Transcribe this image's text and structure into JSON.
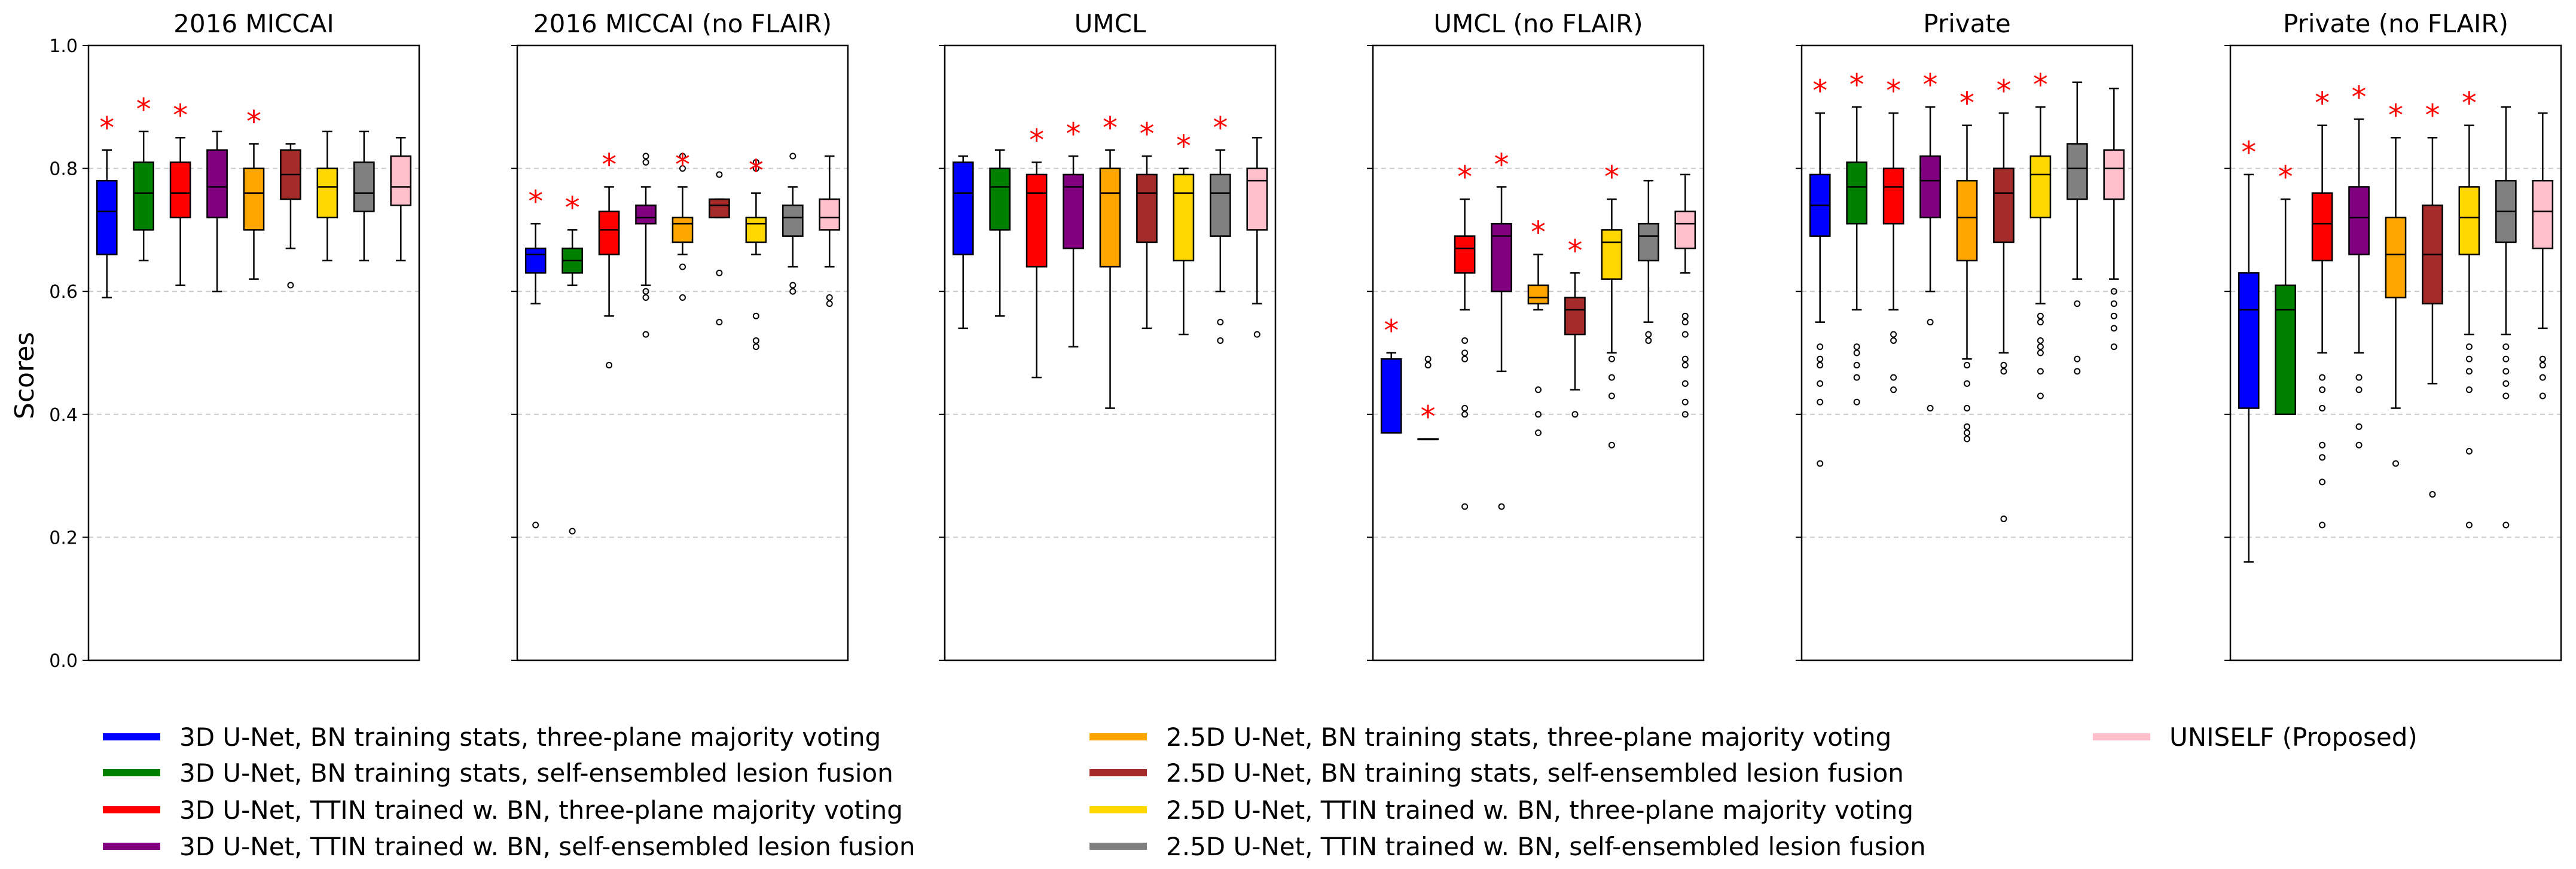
{
  "chart_data": {
    "type": "box",
    "ylabel": "Scores",
    "ylim": [
      0.0,
      1.0
    ],
    "yticks": [
      "0.0",
      "0.2",
      "0.4",
      "0.6",
      "0.8",
      "1.0"
    ],
    "gridlines": [
      0.2,
      0.4,
      0.6,
      0.8
    ],
    "legend": [
      {
        "label": "3D U-Net, BN training stats, three-plane majority voting",
        "color": "#0000ff"
      },
      {
        "label": "3D U-Net, BN training stats, self-ensembled lesion fusion",
        "color": "#008000"
      },
      {
        "label": "3D U-Net, TTIN trained w. BN, three-plane majority voting",
        "color": "#ff0000"
      },
      {
        "label": "3D U-Net, TTIN trained w. BN, self-ensembled lesion fusion",
        "color": "#800080"
      },
      {
        "label": "2.5D U-Net, BN training stats, three-plane majority voting",
        "color": "#ffa500"
      },
      {
        "label": "2.5D U-Net, BN training stats, self-ensembled lesion fusion",
        "color": "#a52a2a"
      },
      {
        "label": "2.5D U-Net, TTIN trained w. BN, three-plane majority voting",
        "color": "#ffd700"
      },
      {
        "label": "2.5D U-Net, TTIN trained w. BN, self-ensembled lesion fusion",
        "color": "#808080"
      },
      {
        "label": "UNISELF (Proposed)",
        "color": "#ffc0cb"
      }
    ],
    "significance_marker": "*",
    "panels": [
      {
        "title": "2016 MICCAI",
        "boxes": [
          {
            "wl": 0.59,
            "q1": 0.66,
            "med": 0.73,
            "q3": 0.78,
            "wh": 0.83,
            "fl": [],
            "sig": true
          },
          {
            "wl": 0.65,
            "q1": 0.7,
            "med": 0.76,
            "q3": 0.81,
            "wh": 0.86,
            "fl": [],
            "sig": true
          },
          {
            "wl": 0.61,
            "q1": 0.72,
            "med": 0.76,
            "q3": 0.81,
            "wh": 0.85,
            "fl": [],
            "sig": true
          },
          {
            "wl": 0.6,
            "q1": 0.72,
            "med": 0.77,
            "q3": 0.83,
            "wh": 0.86,
            "fl": [],
            "sig": false
          },
          {
            "wl": 0.62,
            "q1": 0.7,
            "med": 0.76,
            "q3": 0.8,
            "wh": 0.84,
            "fl": [],
            "sig": true
          },
          {
            "wl": 0.67,
            "q1": 0.75,
            "med": 0.79,
            "q3": 0.83,
            "wh": 0.84,
            "fl": [
              0.61
            ],
            "sig": false
          },
          {
            "wl": 0.65,
            "q1": 0.72,
            "med": 0.77,
            "q3": 0.8,
            "wh": 0.86,
            "fl": [],
            "sig": false
          },
          {
            "wl": 0.65,
            "q1": 0.73,
            "med": 0.76,
            "q3": 0.81,
            "wh": 0.86,
            "fl": [],
            "sig": false
          },
          {
            "wl": 0.65,
            "q1": 0.74,
            "med": 0.77,
            "q3": 0.82,
            "wh": 0.85,
            "fl": [],
            "sig": false
          }
        ]
      },
      {
        "title": "2016 MICCAI (no FLAIR)",
        "boxes": [
          {
            "wl": 0.58,
            "q1": 0.63,
            "med": 0.66,
            "q3": 0.67,
            "wh": 0.71,
            "fl": [
              0.22
            ],
            "sig": true
          },
          {
            "wl": 0.61,
            "q1": 0.63,
            "med": 0.65,
            "q3": 0.67,
            "wh": 0.7,
            "fl": [
              0.21
            ],
            "sig": true
          },
          {
            "wl": 0.56,
            "q1": 0.66,
            "med": 0.7,
            "q3": 0.73,
            "wh": 0.77,
            "fl": [
              0.48
            ],
            "sig": true
          },
          {
            "wl": 0.61,
            "q1": 0.71,
            "med": 0.72,
            "q3": 0.74,
            "wh": 0.77,
            "fl": [
              0.82,
              0.81,
              0.6,
              0.59,
              0.53
            ],
            "sig": false
          },
          {
            "wl": 0.66,
            "q1": 0.68,
            "med": 0.71,
            "q3": 0.72,
            "wh": 0.77,
            "fl": [
              0.82,
              0.8,
              0.64,
              0.59
            ],
            "sig": true
          },
          {
            "wl": 0.72,
            "q1": 0.72,
            "med": 0.74,
            "q3": 0.75,
            "wh": 0.75,
            "fl": [
              0.79,
              0.63,
              0.55
            ],
            "sig": false
          },
          {
            "wl": 0.66,
            "q1": 0.68,
            "med": 0.71,
            "q3": 0.72,
            "wh": 0.76,
            "fl": [
              0.81,
              0.8,
              0.56,
              0.52,
              0.51
            ],
            "sig": true
          },
          {
            "wl": 0.64,
            "q1": 0.69,
            "med": 0.72,
            "q3": 0.74,
            "wh": 0.77,
            "fl": [
              0.82,
              0.61,
              0.6
            ],
            "sig": false
          },
          {
            "wl": 0.64,
            "q1": 0.7,
            "med": 0.72,
            "q3": 0.75,
            "wh": 0.82,
            "fl": [
              0.59,
              0.58
            ],
            "sig": false
          }
        ]
      },
      {
        "title": "UMCL",
        "boxes": [
          {
            "wl": 0.54,
            "q1": 0.66,
            "med": 0.76,
            "q3": 0.81,
            "wh": 0.82,
            "fl": [],
            "sig": false
          },
          {
            "wl": 0.56,
            "q1": 0.7,
            "med": 0.77,
            "q3": 0.8,
            "wh": 0.83,
            "fl": [],
            "sig": false
          },
          {
            "wl": 0.46,
            "q1": 0.64,
            "med": 0.76,
            "q3": 0.79,
            "wh": 0.81,
            "fl": [],
            "sig": true
          },
          {
            "wl": 0.51,
            "q1": 0.67,
            "med": 0.77,
            "q3": 0.79,
            "wh": 0.82,
            "fl": [],
            "sig": true
          },
          {
            "wl": 0.41,
            "q1": 0.64,
            "med": 0.76,
            "q3": 0.8,
            "wh": 0.83,
            "fl": [],
            "sig": true
          },
          {
            "wl": 0.54,
            "q1": 0.68,
            "med": 0.76,
            "q3": 0.79,
            "wh": 0.82,
            "fl": [],
            "sig": true
          },
          {
            "wl": 0.53,
            "q1": 0.65,
            "med": 0.76,
            "q3": 0.79,
            "wh": 0.8,
            "fl": [],
            "sig": true
          },
          {
            "wl": 0.6,
            "q1": 0.69,
            "med": 0.76,
            "q3": 0.79,
            "wh": 0.83,
            "fl": [
              0.55,
              0.52
            ],
            "sig": true
          },
          {
            "wl": 0.58,
            "q1": 0.7,
            "med": 0.78,
            "q3": 0.8,
            "wh": 0.85,
            "fl": [
              0.53
            ],
            "sig": false
          }
        ]
      },
      {
        "title": "UMCL (no FLAIR)",
        "boxes": [
          {
            "wl": 0.37,
            "q1": 0.37,
            "med": 0.37,
            "q3": 0.49,
            "wh": 0.5,
            "fl": [],
            "sig": true
          },
          {
            "wl": 0.36,
            "q1": 0.36,
            "med": 0.36,
            "q3": 0.36,
            "wh": 0.36,
            "fl": [
              0.49,
              0.48
            ],
            "sig": true
          },
          {
            "wl": 0.57,
            "q1": 0.63,
            "med": 0.67,
            "q3": 0.69,
            "wh": 0.75,
            "fl": [
              0.52,
              0.5,
              0.49,
              0.41,
              0.4,
              0.25
            ],
            "sig": true
          },
          {
            "wl": 0.47,
            "q1": 0.6,
            "med": 0.69,
            "q3": 0.71,
            "wh": 0.77,
            "fl": [
              0.25
            ],
            "sig": true
          },
          {
            "wl": 0.57,
            "q1": 0.58,
            "med": 0.59,
            "q3": 0.61,
            "wh": 0.66,
            "fl": [
              0.44,
              0.4,
              0.37
            ],
            "sig": true
          },
          {
            "wl": 0.44,
            "q1": 0.53,
            "med": 0.57,
            "q3": 0.59,
            "wh": 0.63,
            "fl": [
              0.4
            ],
            "sig": true
          },
          {
            "wl": 0.5,
            "q1": 0.62,
            "med": 0.68,
            "q3": 0.7,
            "wh": 0.75,
            "fl": [
              0.49,
              0.46,
              0.43,
              0.35
            ],
            "sig": true
          },
          {
            "wl": 0.55,
            "q1": 0.65,
            "med": 0.69,
            "q3": 0.71,
            "wh": 0.78,
            "fl": [
              0.53,
              0.52
            ],
            "sig": false
          },
          {
            "wl": 0.63,
            "q1": 0.67,
            "med": 0.71,
            "q3": 0.73,
            "wh": 0.79,
            "fl": [
              0.56,
              0.55,
              0.53,
              0.49,
              0.48,
              0.45,
              0.42,
              0.4
            ],
            "sig": false
          }
        ]
      },
      {
        "title": "Private",
        "boxes": [
          {
            "wl": 0.55,
            "q1": 0.69,
            "med": 0.74,
            "q3": 0.79,
            "wh": 0.89,
            "fl": [
              0.51,
              0.49,
              0.48,
              0.45,
              0.42,
              0.32
            ],
            "sig": true
          },
          {
            "wl": 0.57,
            "q1": 0.71,
            "med": 0.77,
            "q3": 0.81,
            "wh": 0.9,
            "fl": [
              0.51,
              0.5,
              0.48,
              0.46,
              0.42
            ],
            "sig": true
          },
          {
            "wl": 0.57,
            "q1": 0.71,
            "med": 0.77,
            "q3": 0.8,
            "wh": 0.89,
            "fl": [
              0.53,
              0.52,
              0.46,
              0.44
            ],
            "sig": true
          },
          {
            "wl": 0.6,
            "q1": 0.72,
            "med": 0.78,
            "q3": 0.82,
            "wh": 0.9,
            "fl": [
              0.55,
              0.41
            ],
            "sig": true
          },
          {
            "wl": 0.49,
            "q1": 0.65,
            "med": 0.72,
            "q3": 0.78,
            "wh": 0.87,
            "fl": [
              0.48,
              0.45,
              0.41,
              0.38,
              0.37,
              0.36
            ],
            "sig": true
          },
          {
            "wl": 0.5,
            "q1": 0.68,
            "med": 0.76,
            "q3": 0.8,
            "wh": 0.89,
            "fl": [
              0.48,
              0.47,
              0.23
            ],
            "sig": true
          },
          {
            "wl": 0.58,
            "q1": 0.72,
            "med": 0.79,
            "q3": 0.82,
            "wh": 0.9,
            "fl": [
              0.56,
              0.55,
              0.52,
              0.51,
              0.5,
              0.47,
              0.43
            ],
            "sig": true
          },
          {
            "wl": 0.62,
            "q1": 0.75,
            "med": 0.8,
            "q3": 0.84,
            "wh": 0.94,
            "fl": [
              0.58,
              0.49,
              0.47
            ],
            "sig": false
          },
          {
            "wl": 0.62,
            "q1": 0.75,
            "med": 0.8,
            "q3": 0.83,
            "wh": 0.93,
            "fl": [
              0.6,
              0.58,
              0.56,
              0.54,
              0.51
            ],
            "sig": false
          }
        ]
      },
      {
        "title": "Private (no FLAIR)",
        "boxes": [
          {
            "wl": 0.16,
            "q1": 0.41,
            "med": 0.57,
            "q3": 0.63,
            "wh": 0.79,
            "fl": [],
            "sig": true
          },
          {
            "wl": 0.4,
            "q1": 0.4,
            "med": 0.57,
            "q3": 0.61,
            "wh": 0.75,
            "fl": [],
            "sig": true
          },
          {
            "wl": 0.5,
            "q1": 0.65,
            "med": 0.71,
            "q3": 0.76,
            "wh": 0.87,
            "fl": [
              0.46,
              0.44,
              0.41,
              0.35,
              0.33,
              0.29,
              0.22
            ],
            "sig": true
          },
          {
            "wl": 0.5,
            "q1": 0.66,
            "med": 0.72,
            "q3": 0.77,
            "wh": 0.88,
            "fl": [
              0.46,
              0.44,
              0.38,
              0.35
            ],
            "sig": true
          },
          {
            "wl": 0.41,
            "q1": 0.59,
            "med": 0.66,
            "q3": 0.72,
            "wh": 0.85,
            "fl": [
              0.32
            ],
            "sig": true
          },
          {
            "wl": 0.45,
            "q1": 0.58,
            "med": 0.66,
            "q3": 0.74,
            "wh": 0.85,
            "fl": [
              0.27
            ],
            "sig": true
          },
          {
            "wl": 0.53,
            "q1": 0.66,
            "med": 0.72,
            "q3": 0.77,
            "wh": 0.87,
            "fl": [
              0.51,
              0.49,
              0.47,
              0.44,
              0.34,
              0.22
            ],
            "sig": true
          },
          {
            "wl": 0.53,
            "q1": 0.68,
            "med": 0.73,
            "q3": 0.78,
            "wh": 0.9,
            "fl": [
              0.51,
              0.49,
              0.47,
              0.45,
              0.43,
              0.22
            ],
            "sig": false
          },
          {
            "wl": 0.54,
            "q1": 0.67,
            "med": 0.73,
            "q3": 0.78,
            "wh": 0.89,
            "fl": [
              0.49,
              0.48,
              0.46,
              0.43
            ],
            "sig": false
          }
        ]
      }
    ]
  }
}
